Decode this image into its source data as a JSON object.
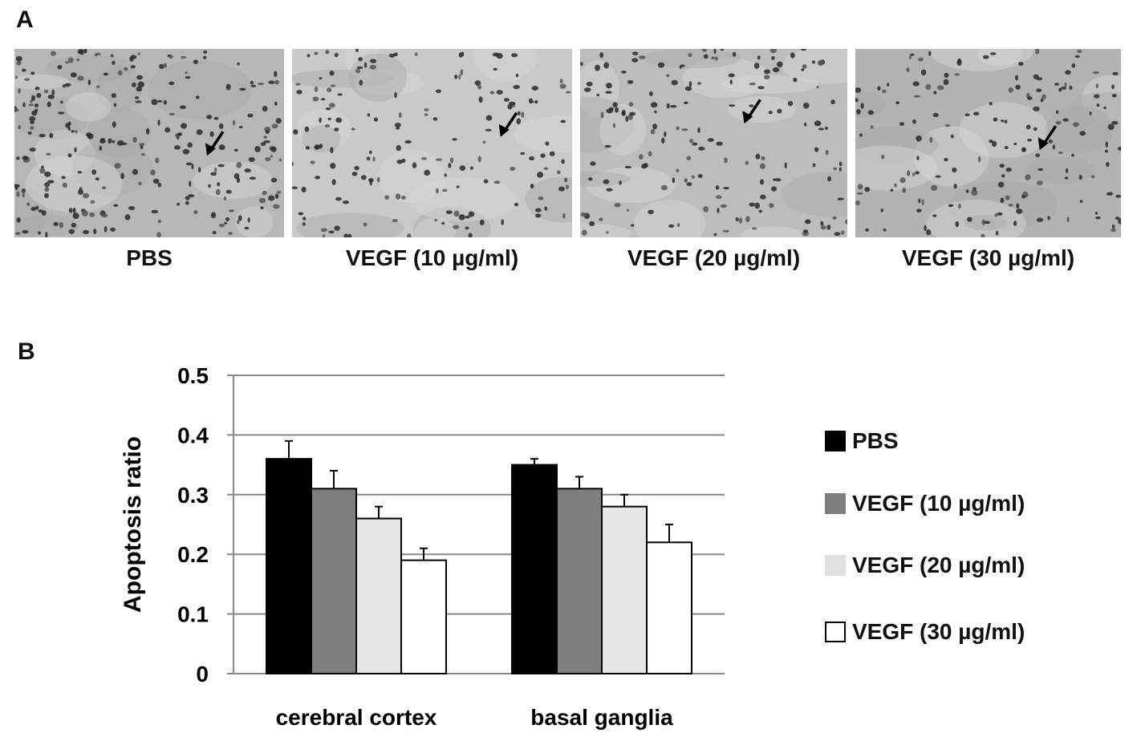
{
  "panel_a": {
    "letter": "A",
    "images": [
      {
        "caption": "PBS",
        "tone": "#b7b7b7"
      },
      {
        "caption": "VEGF (10 µg/ml)",
        "tone": "#c9c9c9"
      },
      {
        "caption": "VEGF (20 µg/ml)",
        "tone": "#bdbdbd"
      },
      {
        "caption": "VEGF (30 µg/ml)",
        "tone": "#b3b3b3"
      }
    ]
  },
  "panel_b": {
    "letter": "B"
  },
  "chart_data": {
    "type": "bar",
    "title": "",
    "xlabel": "",
    "ylabel": "Apoptosis ratio",
    "ylim": [
      0,
      0.5
    ],
    "yticks": [
      "0",
      "0.1",
      "0.2",
      "0.3",
      "0.4",
      "0.5"
    ],
    "categories": [
      "cerebral cortex",
      "basal ganglia"
    ],
    "grid": true,
    "legend_position": "right",
    "series": [
      {
        "name": "PBS",
        "color": "#000000",
        "values": [
          0.36,
          0.35
        ],
        "errors": [
          0.03,
          0.01
        ]
      },
      {
        "name": "VEGF (10 µg/ml)",
        "color": "#7f7f7f",
        "values": [
          0.31,
          0.31
        ],
        "errors": [
          0.03,
          0.02
        ]
      },
      {
        "name": "VEGF (20 µg/ml)",
        "color": "#e6e6e6",
        "values": [
          0.26,
          0.28
        ],
        "errors": [
          0.02,
          0.02
        ]
      },
      {
        "name": "VEGF (30 µg/ml)",
        "color": "#ffffff",
        "values": [
          0.19,
          0.22
        ],
        "errors": [
          0.02,
          0.03
        ]
      }
    ]
  }
}
